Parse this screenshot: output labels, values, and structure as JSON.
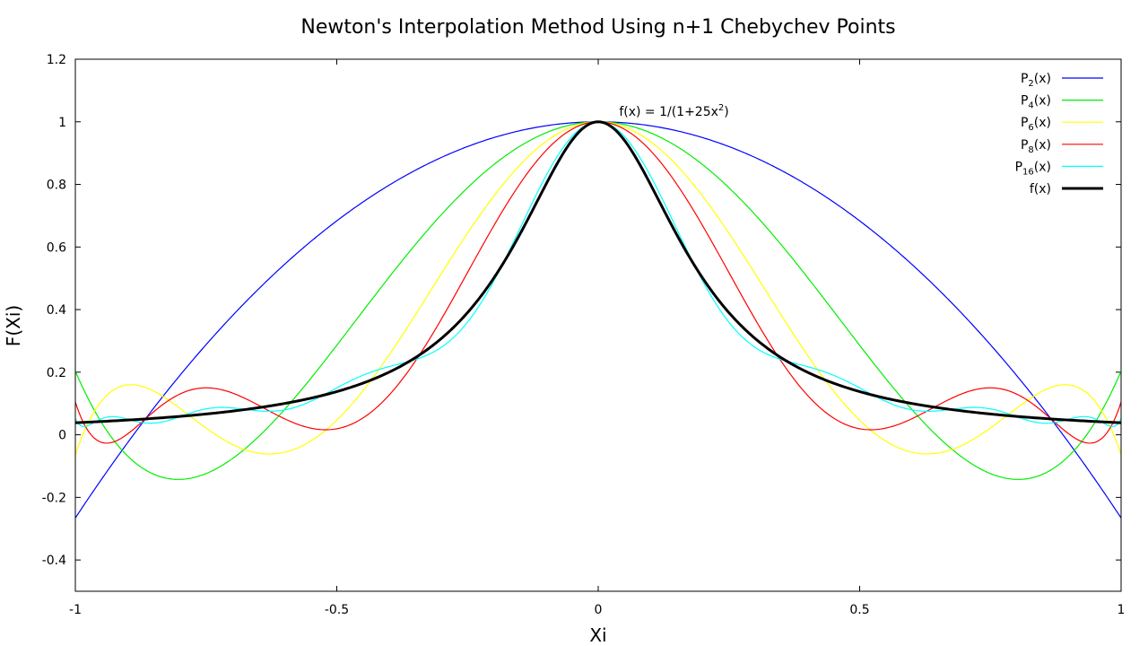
{
  "chart_data": {
    "type": "line",
    "title": "Newton's Interpolation Method Using n+1 Chebychev Points",
    "xlabel": "Xi",
    "ylabel": "F(Xi)",
    "xlim": [
      -1,
      1
    ],
    "ylim": [
      -0.5,
      1.2
    ],
    "x_ticks": [
      "-1",
      "-0.5",
      "0",
      "0.5",
      "1"
    ],
    "y_ticks": [
      "-0.4",
      "-0.2",
      "0",
      "0.2",
      "0.4",
      "0.6",
      "0.8",
      "1",
      "1.2"
    ],
    "grid": false,
    "legend_position": "top-right",
    "annotation": {
      "text": "f(x) = 1/(1+25x",
      "sup": "2",
      "tail": ")",
      "x": 0.04,
      "y": 1.02
    },
    "series": [
      {
        "name": "P",
        "sub": "2",
        "tail": "(x)",
        "color": "#0000ff",
        "width": 1.2,
        "degree": 2
      },
      {
        "name": "P",
        "sub": "4",
        "tail": "(x)",
        "color": "#00ee00",
        "width": 1.2,
        "degree": 4
      },
      {
        "name": "P",
        "sub": "6",
        "tail": "(x)",
        "color": "#ffff00",
        "width": 1.2,
        "degree": 6
      },
      {
        "name": "P",
        "sub": "8",
        "tail": "(x)",
        "color": "#ff0000",
        "width": 1.2,
        "degree": 8
      },
      {
        "name": "P",
        "sub": "16",
        "tail": "(x)",
        "color": "#00ffff",
        "width": 1.2,
        "degree": 16
      },
      {
        "name": "f(x)",
        "sub": "",
        "tail": "",
        "color": "#000000",
        "width": 3,
        "degree": 0
      }
    ]
  }
}
